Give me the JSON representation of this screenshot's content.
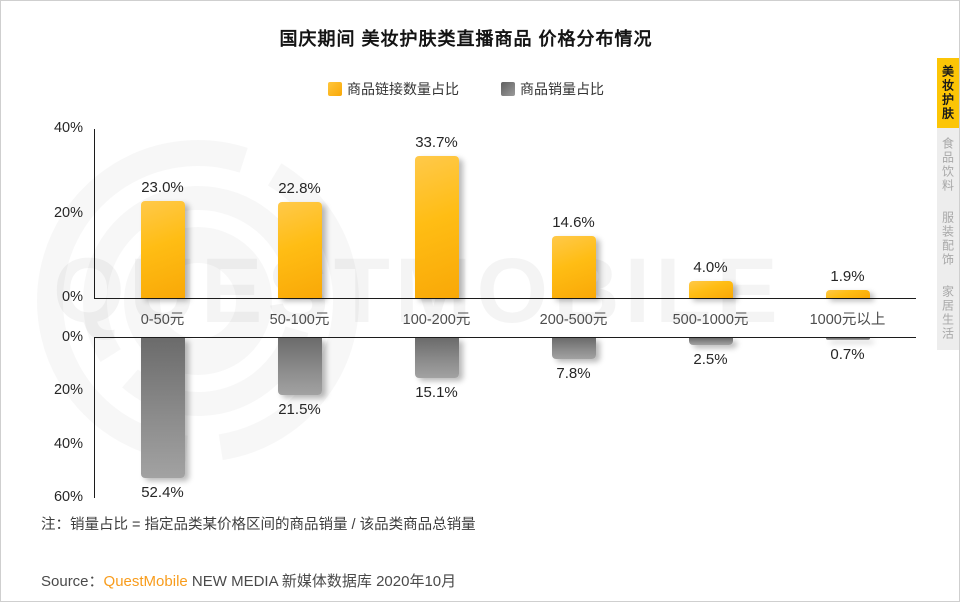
{
  "title": "国庆期间 美妆护肤类直播商品 价格分布情况",
  "legend": [
    {
      "label": "商品链接数量占比",
      "color": "#FBB616"
    },
    {
      "label": "商品销量占比",
      "color": "#7A7A7A"
    }
  ],
  "chart_data": {
    "type": "bar",
    "orientation": "diverging-vertical",
    "categories": [
      "0-50元",
      "50-100元",
      "100-200元",
      "200-500元",
      "500-1000元",
      "1000元以上"
    ],
    "series": [
      {
        "name": "商品链接数量占比",
        "direction": "up",
        "color": "#FFBB14",
        "values": [
          23.0,
          22.8,
          33.7,
          14.6,
          4.0,
          1.9
        ]
      },
      {
        "name": "商品销量占比",
        "direction": "down",
        "color": "#8B8B8B",
        "values": [
          52.4,
          21.5,
          15.1,
          7.8,
          2.5,
          0.7
        ]
      }
    ],
    "top_axis_ticks": [
      "40%",
      "20%",
      "0%"
    ],
    "bottom_axis_ticks": [
      "0%",
      "20%",
      "40%",
      "60%"
    ],
    "top_axis_max": 40,
    "bottom_axis_max": 60,
    "value_suffix": "%",
    "grid": false,
    "legend_position": "top"
  },
  "sidebar": {
    "tabs": [
      {
        "label": "美妆护肤",
        "active": true
      },
      {
        "label": "食品饮料",
        "active": false
      },
      {
        "label": "服装配饰",
        "active": false
      },
      {
        "label": "家居生活",
        "active": false
      }
    ]
  },
  "note": "注：销量占比 = 指定品类某价格区间的商品销量 / 该品类商品总销量",
  "source": {
    "prefix": "Source：",
    "brand": "QuestMobile",
    "rest": " NEW MEDIA 新媒体数据库 2020年10月"
  },
  "watermark": "QUESTMOBILE",
  "colors": {
    "accent_yellow": "#FCC506",
    "bar_yellow_from": "#FFC94A",
    "bar_yellow_to": "#F9A807",
    "bar_gray_from": "#6B6B6B",
    "bar_gray_to": "#A2A2A2",
    "brand_orange": "#F89C1C"
  }
}
